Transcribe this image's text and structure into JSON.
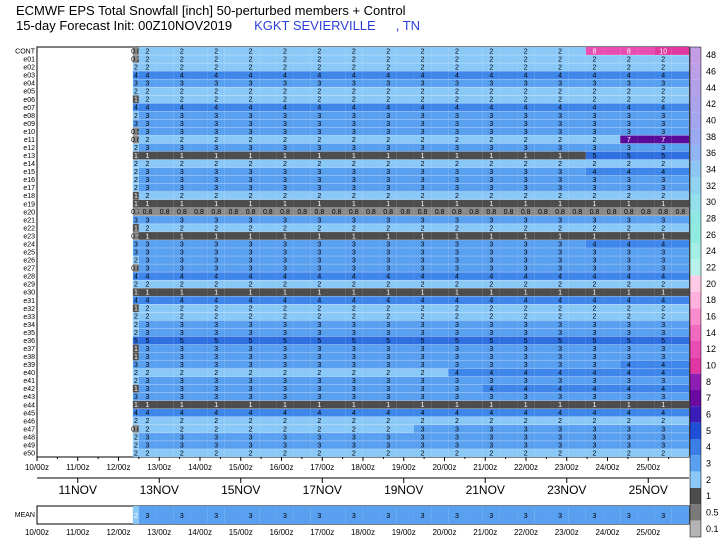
{
  "title": {
    "line1": "ECMWF EPS Total Snowfall [inch]  50-perturbed members + Control",
    "line2_prefix": "15-day Forecast Init: 00Z10NOV2019",
    "location": "KGKT SEVIERVILLE",
    "state": ", TN"
  },
  "chart_data": {
    "type": "heatmap",
    "title": "ECMWF EPS Total Snowfall [inch]  50-perturbed members + Control",
    "rows": [
      "CONT",
      "e01",
      "e02",
      "e03",
      "e04",
      "e05",
      "e06",
      "e07",
      "e08",
      "e09",
      "e10",
      "e11",
      "e12",
      "e13",
      "e14",
      "e15",
      "e16",
      "e17",
      "e18",
      "e19",
      "e20",
      "e21",
      "e22",
      "e23",
      "e24",
      "e25",
      "e26",
      "e27",
      "e28",
      "e29",
      "e30",
      "e31",
      "e32",
      "e33",
      "e34",
      "e35",
      "e36",
      "e37",
      "e38",
      "e39",
      "e40",
      "e41",
      "e42",
      "e43",
      "e44",
      "e45",
      "e46",
      "e47",
      "e48",
      "e49",
      "e50"
    ],
    "x_tick_labels": [
      "10/00z",
      "11/00z",
      "12/00z",
      "13/00z",
      "14/00z",
      "15/00z",
      "16/00z",
      "17/00z",
      "18/00z",
      "19/00z",
      "20/00z",
      "21/00z",
      "22/00z",
      "23/00z",
      "24/00z",
      "25/00z"
    ],
    "x_date_labels": [
      "11NOV",
      "13NOV",
      "15NOV",
      "17NOV",
      "19NOV",
      "21NOV",
      "23NOV",
      "25NOV"
    ],
    "n_steps": 32,
    "members": [
      {
        "name": "CONT",
        "start": 0.8,
        "segments": [
          [
            0,
            2
          ],
          [
            13,
            8
          ],
          [
            15,
            10
          ]
        ]
      },
      {
        "name": "e01",
        "start": 0.2,
        "segments": [
          [
            0,
            2
          ]
        ]
      },
      {
        "name": "e02",
        "start": 2,
        "segments": [
          [
            0,
            2
          ]
        ]
      },
      {
        "name": "e03",
        "start": 4,
        "segments": [
          [
            0,
            4
          ]
        ]
      },
      {
        "name": "e04",
        "start": 3,
        "segments": [
          [
            0,
            3
          ]
        ]
      },
      {
        "name": "e05",
        "start": 2,
        "segments": [
          [
            0,
            2
          ]
        ]
      },
      {
        "name": "e06",
        "start": 1,
        "segments": [
          [
            0,
            2
          ]
        ]
      },
      {
        "name": "e07",
        "start": 4,
        "segments": [
          [
            0,
            4
          ]
        ]
      },
      {
        "name": "e08",
        "start": 2,
        "segments": [
          [
            0,
            3
          ]
        ]
      },
      {
        "name": "e09",
        "start": 3,
        "segments": [
          [
            0,
            3
          ]
        ]
      },
      {
        "name": "e10",
        "start": 0.5,
        "segments": [
          [
            0,
            3
          ]
        ]
      },
      {
        "name": "e11",
        "start": 0.6,
        "segments": [
          [
            0,
            2
          ],
          [
            14,
            7
          ]
        ]
      },
      {
        "name": "e12",
        "start": 2,
        "segments": [
          [
            0,
            3
          ]
        ]
      },
      {
        "name": "e13",
        "start": 1,
        "segments": [
          [
            0,
            1
          ],
          [
            13,
            5
          ]
        ]
      },
      {
        "name": "e14",
        "start": 2,
        "segments": [
          [
            0,
            2
          ]
        ]
      },
      {
        "name": "e15",
        "start": 2,
        "segments": [
          [
            0,
            3
          ],
          [
            13,
            4
          ]
        ]
      },
      {
        "name": "e16",
        "start": 2,
        "segments": [
          [
            0,
            3
          ]
        ]
      },
      {
        "name": "e17",
        "start": 2,
        "segments": [
          [
            0,
            3
          ]
        ]
      },
      {
        "name": "e18",
        "start": 1,
        "segments": [
          [
            0,
            2
          ]
        ]
      },
      {
        "name": "e19",
        "start": 1,
        "segments": [
          [
            0,
            1
          ]
        ]
      },
      {
        "name": "e20",
        "start": 0.7,
        "segments": [
          [
            0,
            0.8
          ]
        ]
      },
      {
        "name": "e21",
        "start": 3,
        "segments": [
          [
            0,
            3
          ]
        ]
      },
      {
        "name": "e22",
        "start": 1,
        "segments": [
          [
            0,
            2
          ]
        ]
      },
      {
        "name": "e23",
        "start": 0.7,
        "segments": [
          [
            0,
            1
          ]
        ]
      },
      {
        "name": "e24",
        "start": 3,
        "segments": [
          [
            0,
            3
          ],
          [
            13,
            4
          ]
        ]
      },
      {
        "name": "e25",
        "start": 3,
        "segments": [
          [
            0,
            3
          ]
        ]
      },
      {
        "name": "e26",
        "start": 2,
        "segments": [
          [
            0,
            3
          ]
        ]
      },
      {
        "name": "e27",
        "start": 0.8,
        "segments": [
          [
            0,
            3
          ]
        ]
      },
      {
        "name": "e28",
        "start": 4,
        "segments": [
          [
            0,
            4
          ]
        ]
      },
      {
        "name": "e29",
        "start": 2,
        "segments": [
          [
            0,
            2
          ]
        ]
      },
      {
        "name": "e30",
        "start": 1,
        "segments": [
          [
            0,
            1
          ]
        ]
      },
      {
        "name": "e31",
        "start": 4,
        "segments": [
          [
            0,
            4
          ]
        ]
      },
      {
        "name": "e32",
        "start": 1.0,
        "segments": [
          [
            0,
            2
          ]
        ]
      },
      {
        "name": "e33",
        "start": 2,
        "segments": [
          [
            0,
            2
          ]
        ]
      },
      {
        "name": "e34",
        "start": 2,
        "segments": [
          [
            0,
            3
          ]
        ]
      },
      {
        "name": "e35",
        "start": 2,
        "segments": [
          [
            0,
            3
          ]
        ]
      },
      {
        "name": "e36",
        "start": 5,
        "segments": [
          [
            0,
            5
          ]
        ]
      },
      {
        "name": "e37",
        "start": 1,
        "segments": [
          [
            0,
            3
          ]
        ]
      },
      {
        "name": "e38",
        "start": 1,
        "segments": [
          [
            0,
            3
          ]
        ]
      },
      {
        "name": "e39",
        "start": 3,
        "segments": [
          [
            0,
            3
          ],
          [
            14,
            4
          ]
        ]
      },
      {
        "name": "e40",
        "start": 2,
        "segments": [
          [
            0,
            2
          ],
          [
            9,
            4
          ]
        ]
      },
      {
        "name": "e41",
        "start": 2,
        "segments": [
          [
            0,
            3
          ]
        ]
      },
      {
        "name": "e42",
        "start": 1,
        "segments": [
          [
            0,
            3
          ],
          [
            10,
            4
          ]
        ]
      },
      {
        "name": "e43",
        "start": 3,
        "segments": [
          [
            0,
            3
          ]
        ]
      },
      {
        "name": "e44",
        "start": 1,
        "segments": [
          [
            0,
            1
          ]
        ]
      },
      {
        "name": "e45",
        "start": 4,
        "segments": [
          [
            0,
            4
          ]
        ]
      },
      {
        "name": "e46",
        "start": 2,
        "segments": [
          [
            0,
            2
          ]
        ]
      },
      {
        "name": "e47",
        "start": 0.8,
        "segments": [
          [
            0,
            2
          ],
          [
            8,
            3
          ]
        ]
      },
      {
        "name": "e48",
        "start": 2,
        "segments": [
          [
            0,
            3
          ]
        ]
      },
      {
        "name": "e49",
        "start": 2,
        "segments": [
          [
            0,
            3
          ]
        ]
      },
      {
        "name": "e50",
        "start": 2,
        "segments": [
          [
            0,
            2
          ]
        ]
      }
    ],
    "mean": {
      "label": "MEAN",
      "start": 2,
      "value": 3
    },
    "colorbar": {
      "ticks": [
        48,
        46,
        44,
        42,
        40,
        38,
        36,
        34,
        32,
        30,
        28,
        26,
        24,
        22,
        20,
        18,
        16,
        14,
        12,
        10,
        8,
        7,
        6,
        5,
        4,
        3,
        2,
        1,
        0.5,
        0.1
      ],
      "colors": [
        "#c39ee6",
        "#bba0e8",
        "#b3a2ea",
        "#aba4ec",
        "#a3a6ee",
        "#9aa9f0",
        "#91b4f2",
        "#8cc4f2",
        "#8fd3f0",
        "#93e0ec",
        "#8fe8e4",
        "#90ece0",
        "#a4eee5",
        "#b8f0ea",
        "#ffcae6",
        "#ffb0dc",
        "#f98ccd",
        "#f06bbf",
        "#e84db1",
        "#e036a4",
        "#8d1fb5",
        "#6a0aa0",
        "#3a1cb8",
        "#1f4fd6",
        "#3b7ee6",
        "#5aa0f0",
        "#8ac8f8",
        "#4d4d4d",
        "#7a7a7a",
        "#b4b4b4"
      ]
    }
  }
}
